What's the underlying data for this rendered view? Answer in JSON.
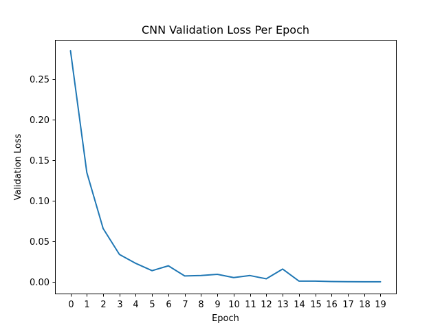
{
  "chart_data": {
    "type": "line",
    "title": "CNN Validation Loss Per Epoch",
    "xlabel": "Epoch",
    "ylabel": "Validation Loss",
    "x": [
      0,
      1,
      2,
      3,
      4,
      5,
      6,
      7,
      8,
      9,
      10,
      11,
      12,
      13,
      14,
      15,
      16,
      17,
      18,
      19
    ],
    "x_ticks": [
      "0",
      "1",
      "2",
      "3",
      "4",
      "5",
      "6",
      "7",
      "8",
      "9",
      "10",
      "11",
      "12",
      "13",
      "14",
      "15",
      "16",
      "17",
      "18",
      "19"
    ],
    "y_ticks": [
      "0.00",
      "0.05",
      "0.10",
      "0.15",
      "0.20",
      "0.25"
    ],
    "y_tick_values": [
      0.0,
      0.05,
      0.1,
      0.15,
      0.2,
      0.25
    ],
    "xlim": [
      -0.95,
      19.95
    ],
    "ylim": [
      -0.0142,
      0.2985
    ],
    "grid": false,
    "series": [
      {
        "color": "#1f77b4",
        "values": [
          0.285,
          0.135,
          0.066,
          0.034,
          0.023,
          0.014,
          0.02,
          0.0075,
          0.008,
          0.0095,
          0.0055,
          0.008,
          0.004,
          0.016,
          0.0012,
          0.0012,
          0.0006,
          0.0004,
          0.0003,
          0.0003
        ]
      }
    ]
  }
}
